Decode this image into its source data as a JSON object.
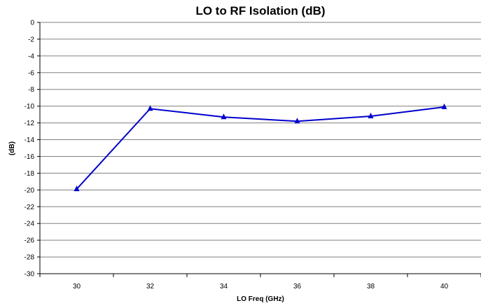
{
  "chart_data": {
    "type": "line",
    "title": "LO to RF Isolation (dB)",
    "xlabel": "LO Freq (GHz)",
    "ylabel": "(dB)",
    "categories": [
      "30",
      "32",
      "34",
      "36",
      "38",
      "40"
    ],
    "x": [
      30,
      32,
      34,
      36,
      38,
      40
    ],
    "y_ticks": [
      "0",
      "-2",
      "-4",
      "-6",
      "-8",
      "-10",
      "-12",
      "-14",
      "-16",
      "-18",
      "-20",
      "-22",
      "-24",
      "-26",
      "-28",
      "-30"
    ],
    "ylim": [
      -30,
      0
    ],
    "y_tick_step": 2,
    "grid": true,
    "legend": "none",
    "series": [
      {
        "values": [
          -19.9,
          -10.3,
          -11.3,
          -11.8,
          -11.2,
          -10.1
        ],
        "color": "#0000CC",
        "marker": "triangle"
      }
    ]
  }
}
